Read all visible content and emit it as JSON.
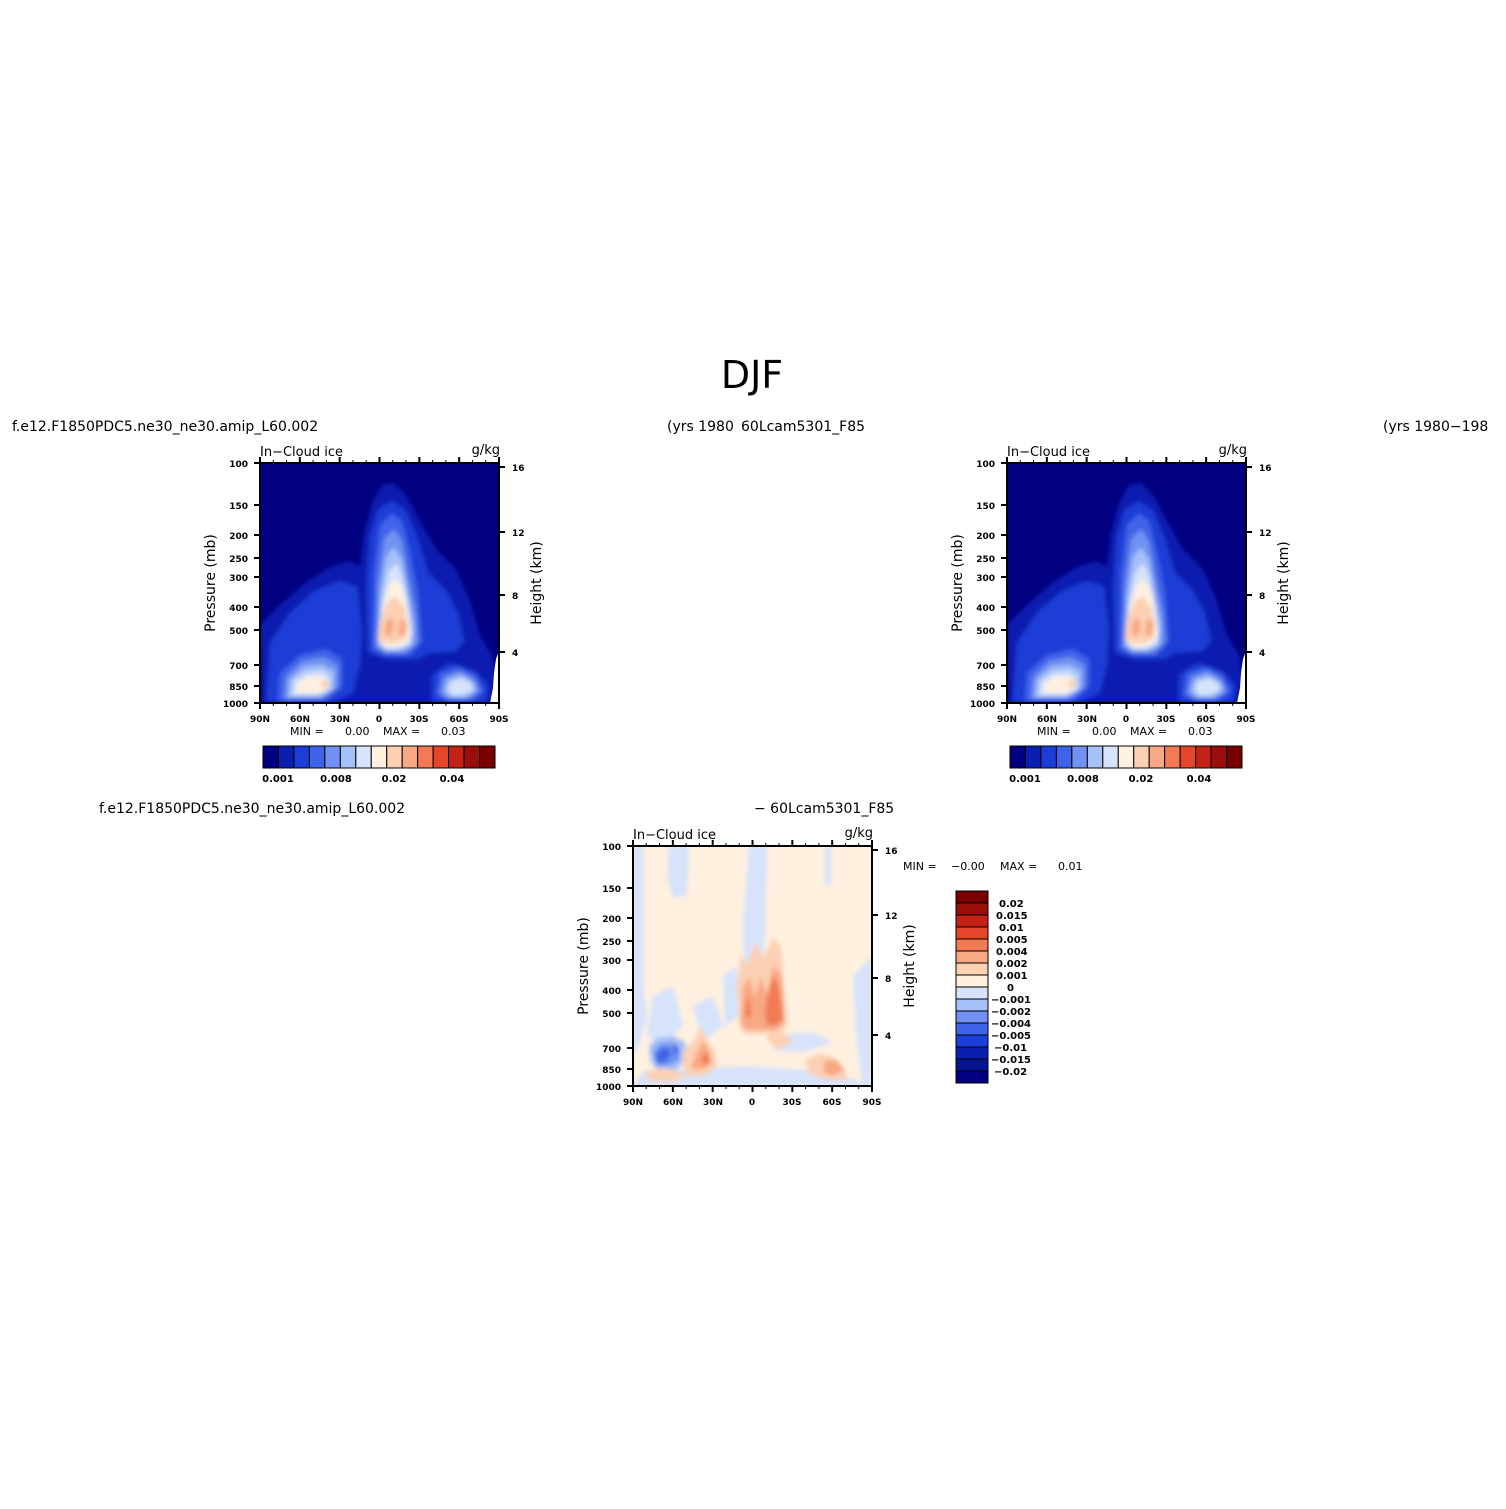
{
  "figure": {
    "title": "DJF",
    "case_a_name": "f.e12.F1850PDC5.ne30_ne30.amip_L60.002",
    "case_a_years": "(yrs 1980",
    "case_b_name": "60Lcam5301_F85",
    "case_b_years": "(yrs 1980−198",
    "diff_left": "f.e12.F1850PDC5.ne30_ne30.amip_L60.002",
    "diff_right": "− 60Lcam5301_F85"
  },
  "colors": {
    "c0": "#000080",
    "c1": "#0a1fb0",
    "c2": "#1c3ed6",
    "c3": "#3f63e8",
    "c4": "#7192f2",
    "c5": "#a6c0f8",
    "c6": "#d6e3fb",
    "c7": "#fff0e0",
    "c8": "#fcd0b3",
    "c9": "#f8a883",
    "c10": "#f27b55",
    "c11": "#e5462a",
    "c12": "#c42214",
    "c13": "#9a0f0b",
    "c14": "#7a0000"
  },
  "chart_data": [
    {
      "type": "heatmap",
      "panel": "top-left",
      "title": "In−Cloud ice",
      "units": "g/kg",
      "ylabel": "Pressure (mb)",
      "ylabel_right": "Height (km)",
      "x_ticks": [
        "90N",
        "60N",
        "30N",
        "0",
        "30S",
        "60S",
        "90S"
      ],
      "y_ticks": [
        "100",
        "150",
        "200",
        "250",
        "300",
        "400",
        "500",
        "700",
        "850",
        "1000"
      ],
      "y_right_ticks": [
        "4",
        "8",
        "12",
        "16"
      ],
      "min_label": "MIN =",
      "min_value": "0.00",
      "max_label": "MAX =",
      "max_value": "0.03",
      "colorbar_labels": [
        "0.001",
        "0.008",
        "0.02",
        "0.04"
      ],
      "colorbar": {
        "orientation": "horizontal",
        "colors": 15
      }
    },
    {
      "type": "heatmap",
      "panel": "top-right",
      "title": "In−Cloud ice",
      "units": "g/kg",
      "ylabel": "Pressure (mb)",
      "ylabel_right": "Height (km)",
      "x_ticks": [
        "90N",
        "60N",
        "30N",
        "0",
        "30S",
        "60S",
        "90S"
      ],
      "y_ticks": [
        "100",
        "150",
        "200",
        "250",
        "300",
        "400",
        "500",
        "700",
        "850",
        "1000"
      ],
      "y_right_ticks": [
        "4",
        "8",
        "12",
        "16"
      ],
      "min_label": "MIN =",
      "min_value": "0.00",
      "max_label": "MAX =",
      "max_value": "0.03",
      "colorbar_labels": [
        "0.001",
        "0.008",
        "0.02",
        "0.04"
      ],
      "colorbar": {
        "orientation": "horizontal",
        "colors": 15
      }
    },
    {
      "type": "heatmap",
      "panel": "bottom-difference",
      "title": "In−Cloud ice",
      "units": "g/kg",
      "ylabel": "Pressure (mb)",
      "ylabel_right": "Height (km)",
      "x_ticks": [
        "90N",
        "60N",
        "30N",
        "0",
        "30S",
        "60S",
        "90S"
      ],
      "y_ticks": [
        "100",
        "150",
        "200",
        "250",
        "300",
        "400",
        "500",
        "700",
        "850",
        "1000"
      ],
      "y_right_ticks": [
        "4",
        "8",
        "12",
        "16"
      ],
      "min_label": "MIN =",
      "min_value": "−0.00",
      "max_label": "MAX =",
      "max_value": "0.01",
      "colorbar_labels": [
        "0.02",
        "0.015",
        "0.01",
        "0.005",
        "0.004",
        "0.002",
        "0.001",
        "0",
        "−0.001",
        "−0.002",
        "−0.004",
        "−0.005",
        "−0.01",
        "−0.015",
        "−0.02"
      ],
      "colorbar": {
        "orientation": "vertical",
        "colors": 16
      }
    }
  ]
}
